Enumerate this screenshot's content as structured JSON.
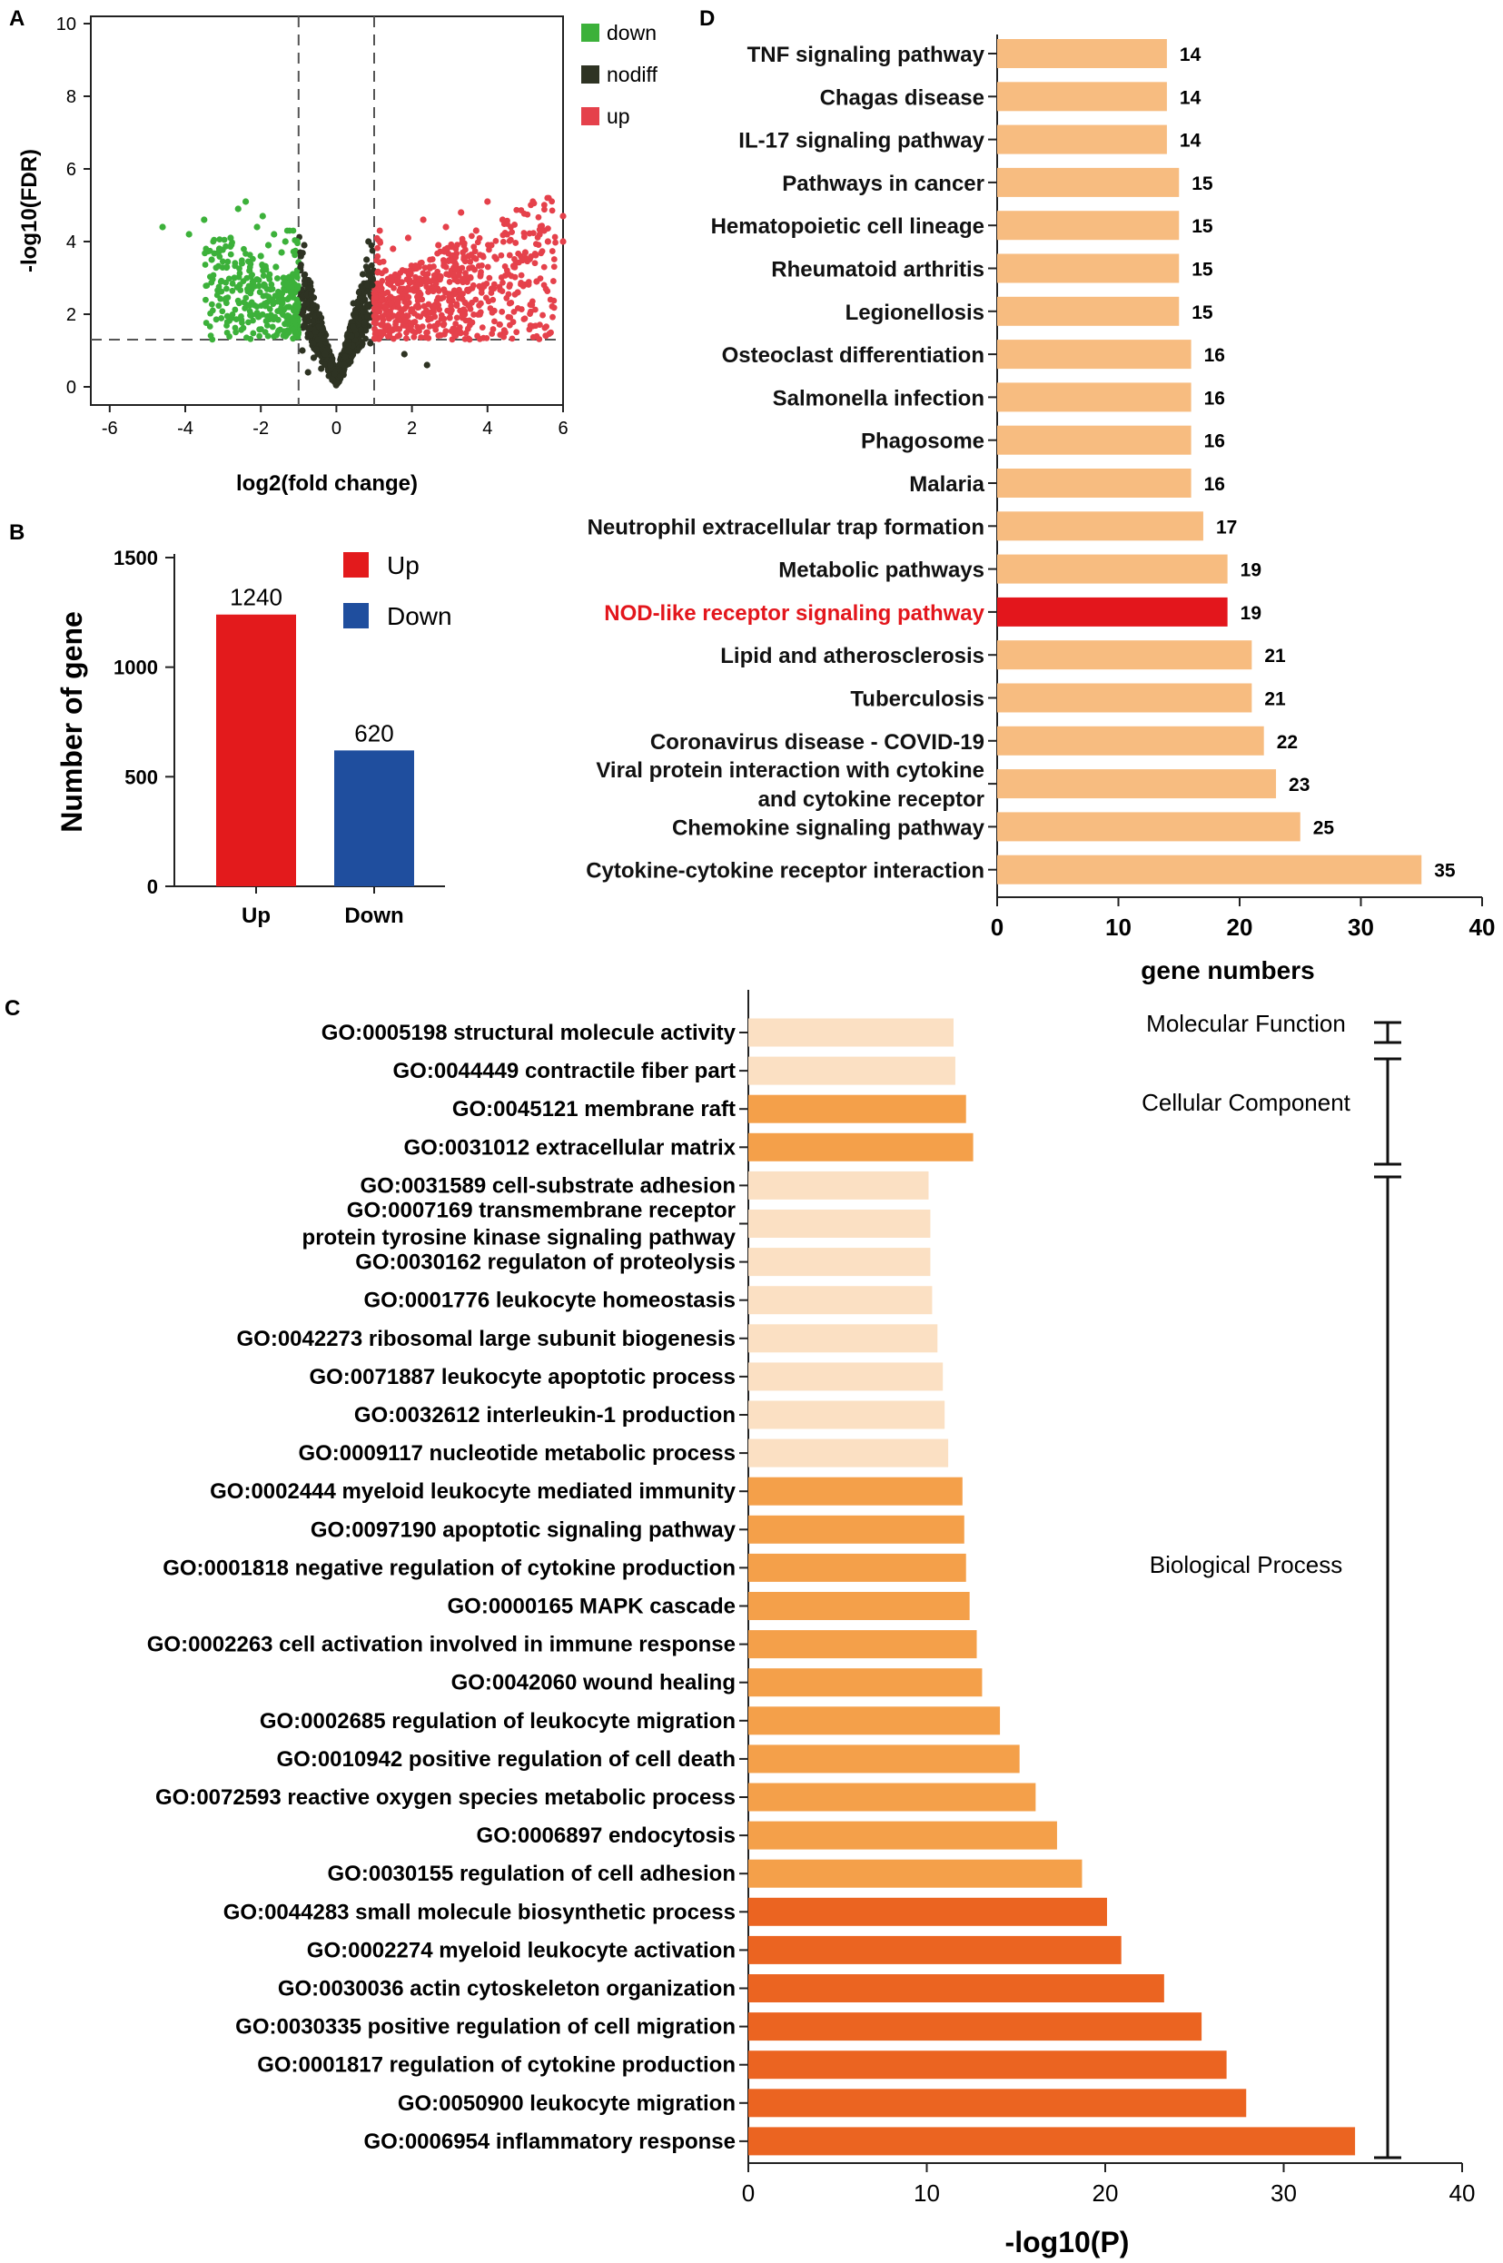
{
  "panels": {
    "a": "A",
    "b": "B",
    "c": "C",
    "d": "D"
  },
  "colors": {
    "down": "#3cb13a",
    "nodiff": "#2e3323",
    "up": "#e5414b",
    "bar_up": "#e31a1c",
    "bar_down": "#1f4e9e",
    "kegg": "#f7bc80",
    "kegg_highlight": "#e3161c",
    "kegg_highlight_text": "#e3161c",
    "go_light": "#fbe0c3",
    "go_mid": "#f4a04a",
    "go_dark": "#eb6421"
  },
  "chart_data": [
    {
      "id": "volcano",
      "type": "scatter",
      "title": "",
      "xlabel": "log2(fold change)",
      "ylabel": "-log10(FDR)",
      "xlim": [
        -6.5,
        6
      ],
      "ylim": [
        -0.5,
        10.2
      ],
      "xticks": [
        "-6",
        "-4",
        "-2",
        "0",
        "2",
        "4",
        "6"
      ],
      "yticks": [
        "0",
        "2",
        "4",
        "6",
        "8",
        "10"
      ],
      "thresholds": {
        "log2fc": [
          -1,
          1
        ],
        "neg_log10_fdr": 1.3
      },
      "legend": [
        {
          "key": "down",
          "label": "down"
        },
        {
          "key": "nodiff",
          "label": "nodiff"
        },
        {
          "key": "up",
          "label": "up"
        }
      ],
      "legend_position": "top-right",
      "sample_points": {
        "down": [
          [
            -4.6,
            4.4
          ],
          [
            -3.9,
            4.2
          ],
          [
            -3.5,
            4.6
          ],
          [
            -3.1,
            3.8
          ],
          [
            -2.8,
            4.1
          ],
          [
            -2.6,
            4.9
          ],
          [
            -2.4,
            5.1
          ],
          [
            -2.3,
            3.2
          ],
          [
            -2.1,
            4.4
          ],
          [
            -2.0,
            3.6
          ],
          [
            -1.9,
            2.8
          ],
          [
            -1.8,
            3.9
          ],
          [
            -1.7,
            2.4
          ],
          [
            -1.6,
            3.3
          ],
          [
            -1.5,
            2.1
          ],
          [
            -1.4,
            3.0
          ],
          [
            -1.3,
            1.8
          ],
          [
            -1.2,
            2.6
          ],
          [
            -1.1,
            1.5
          ],
          [
            -2.5,
            3.4
          ],
          [
            -2.2,
            2.9
          ],
          [
            -1.95,
            4.7
          ],
          [
            -1.65,
            4.2
          ],
          [
            -1.45,
            3.7
          ],
          [
            -1.25,
            2.2
          ],
          [
            -3.3,
            3.5
          ],
          [
            -2.9,
            3.3
          ],
          [
            -2.7,
            3.0
          ],
          [
            -1.35,
            4.0
          ],
          [
            -1.15,
            3.1
          ]
        ],
        "nodiff": [
          [
            -0.9,
            1.0
          ],
          [
            -0.8,
            2.3
          ],
          [
            -0.7,
            1.6
          ],
          [
            -0.6,
            0.8
          ],
          [
            -0.5,
            1.3
          ],
          [
            -0.4,
            0.5
          ],
          [
            -0.3,
            0.9
          ],
          [
            -0.2,
            0.3
          ],
          [
            -0.1,
            0.2
          ],
          [
            0.0,
            0.1
          ],
          [
            0.1,
            0.3
          ],
          [
            0.2,
            0.6
          ],
          [
            0.3,
            1.0
          ],
          [
            0.4,
            1.4
          ],
          [
            0.5,
            1.9
          ],
          [
            0.6,
            2.6
          ],
          [
            0.7,
            3.1
          ],
          [
            0.8,
            3.5
          ],
          [
            0.9,
            1.2
          ],
          [
            -0.95,
            3.3
          ],
          [
            -0.85,
            3.9
          ],
          [
            0.95,
            2.8
          ],
          [
            0.85,
            4.0
          ],
          [
            -0.15,
            0.6
          ],
          [
            0.15,
            0.4
          ],
          [
            -0.45,
            2.0
          ],
          [
            0.45,
            2.3
          ],
          [
            1.8,
            0.9
          ],
          [
            2.4,
            0.6
          ],
          [
            -0.75,
            0.4
          ]
        ],
        "up": [
          [
            1.1,
            1.5
          ],
          [
            1.2,
            2.4
          ],
          [
            1.3,
            3.2
          ],
          [
            1.4,
            2.0
          ],
          [
            1.5,
            3.8
          ],
          [
            1.7,
            2.7
          ],
          [
            1.9,
            4.1
          ],
          [
            2.1,
            3.3
          ],
          [
            2.3,
            4.6
          ],
          [
            2.5,
            2.9
          ],
          [
            2.7,
            3.9
          ],
          [
            2.9,
            4.4
          ],
          [
            3.1,
            3.1
          ],
          [
            3.3,
            4.8
          ],
          [
            3.5,
            3.6
          ],
          [
            3.7,
            4.3
          ],
          [
            3.9,
            2.8
          ],
          [
            4.1,
            3.9
          ],
          [
            4.4,
            4.6
          ],
          [
            4.7,
            3.3
          ],
          [
            5.0,
            3.7
          ],
          [
            5.3,
            2.9
          ],
          [
            5.6,
            4.0
          ],
          [
            6.0,
            4.7
          ],
          [
            6.0,
            4.0
          ],
          [
            1.6,
            1.6
          ],
          [
            2.0,
            2.1
          ],
          [
            2.6,
            2.2
          ],
          [
            3.0,
            1.9
          ],
          [
            4.0,
            5.1
          ],
          [
            4.8,
            2.6
          ],
          [
            5.5,
            4.3
          ]
        ]
      }
    },
    {
      "id": "deg-count",
      "type": "bar",
      "xlabel": "",
      "ylabel": "Number of gene",
      "categories": [
        "Up",
        "Down"
      ],
      "values": [
        1240,
        620
      ],
      "value_labels": [
        "1240",
        "620"
      ],
      "ylim": [
        0,
        1500
      ],
      "yticks": [
        "0",
        "500",
        "1000",
        "1500"
      ],
      "legend": [
        {
          "key": "bar_up",
          "label": "Up"
        },
        {
          "key": "bar_down",
          "label": "Down"
        }
      ],
      "legend_position": "top-right"
    },
    {
      "id": "go-enrichment",
      "type": "bar",
      "orientation": "horizontal",
      "xlabel": "-log10(P)",
      "xlim": [
        0,
        40
      ],
      "xticks": [
        "0",
        "10",
        "20",
        "30",
        "40"
      ],
      "categories": [
        "GO:0005198  structural molecule activity",
        "GO:0044449  contractile fiber part",
        "GO:0045121  membrane raft",
        "GO:0031012  extracellular matrix",
        "GO:0031589  cell-substrate adhesion",
        "GO:0007169  transmembrane receptor\nprotein tyrosine kinase signaling pathway",
        "GO:0030162  regulaton of proteolysis",
        "GO:0001776  leukocyte homeostasis",
        "GO:0042273  ribosomal large subunit biogenesis",
        "GO:0071887  leukocyte apoptotic process",
        "GO:0032612  interleukin-1 production",
        "GO:0009117  nucleotide metabolic process",
        "GO:0002444  myeloid leukocyte mediated immunity",
        "GO:0097190  apoptotic signaling pathway",
        "GO:0001818  negative regulation of cytokine production",
        "GO:0000165  MAPK cascade",
        "GO:0002263  cell activation involved in immune response",
        "GO:0042060  wound healing",
        "GO:0002685  regulation of leukocyte migration",
        "GO:0010942  positive regulation of cell death",
        "GO:0072593  reactive oxygen species metabolic process",
        "GO:0006897  endocytosis",
        "GO:0030155  regulation of cell adhesion",
        "GO:0044283  small molecule biosynthetic process",
        "GO:0002274  myeloid leukocyte activation",
        "GO:0030036  actin cytoskeleton organization",
        "GO:0030335  positive regulation of cell migration",
        "GO:0001817  regulation of cytokine production",
        "GO:0050900  leukocyte migration",
        "GO:0006954  inflammatory response"
      ],
      "values": [
        11.5,
        11.6,
        12.2,
        12.6,
        10.1,
        10.2,
        10.2,
        10.3,
        10.6,
        10.9,
        11.0,
        11.2,
        12.0,
        12.1,
        12.2,
        12.4,
        12.8,
        13.1,
        14.1,
        15.2,
        16.1,
        17.3,
        18.7,
        20.1,
        20.9,
        23.3,
        25.4,
        26.8,
        27.9,
        34.0
      ],
      "shades": [
        "go_light",
        "go_light",
        "go_mid",
        "go_mid",
        "go_light",
        "go_light",
        "go_light",
        "go_light",
        "go_light",
        "go_light",
        "go_light",
        "go_light",
        "go_mid",
        "go_mid",
        "go_mid",
        "go_mid",
        "go_mid",
        "go_mid",
        "go_mid",
        "go_mid",
        "go_mid",
        "go_mid",
        "go_mid",
        "go_dark",
        "go_dark",
        "go_dark",
        "go_dark",
        "go_dark",
        "go_dark",
        "go_dark"
      ],
      "groups": [
        {
          "label": "Molecular Function",
          "from": 0,
          "to": 0
        },
        {
          "label": "Cellular Component",
          "from": 1,
          "to": 3
        },
        {
          "label": "Biological Process",
          "from": 4,
          "to": 29
        }
      ]
    },
    {
      "id": "kegg-enrichment",
      "type": "bar",
      "orientation": "horizontal",
      "xlabel": "gene numbers",
      "xlim": [
        0,
        40
      ],
      "xticks": [
        "0",
        "10",
        "20",
        "30",
        "40"
      ],
      "categories": [
        "TNF signaling pathway",
        "Chagas disease",
        "IL-17 signaling pathway",
        "Pathways in cancer",
        "Hematopoietic cell lineage",
        "Rheumatoid arthritis",
        "Legionellosis",
        "Osteoclast differentiation",
        "Salmonella infection",
        "Phagosome",
        "Malaria",
        "Neutrophil extracellular trap formation",
        "Metabolic pathways",
        "NOD-like receptor signaling pathway",
        "Lipid and atherosclerosis",
        "Tuberculosis",
        "Coronavirus disease - COVID-19",
        "Viral protein interaction with cytokine\nand cytokine receptor",
        "Chemokine signaling pathway",
        "Cytokine-cytokine receptor interaction"
      ],
      "values": [
        14,
        14,
        14,
        15,
        15,
        15,
        15,
        16,
        16,
        16,
        16,
        17,
        19,
        19,
        21,
        21,
        22,
        23,
        25,
        35
      ],
      "value_labels": [
        "14",
        "14",
        "14",
        "15",
        "15",
        "15",
        "15",
        "16",
        "16",
        "16",
        "16",
        "17",
        "19",
        "19",
        "21",
        "21",
        "22",
        "23",
        "25",
        "35"
      ],
      "highlight": "NOD-like receptor signaling pathway"
    }
  ]
}
